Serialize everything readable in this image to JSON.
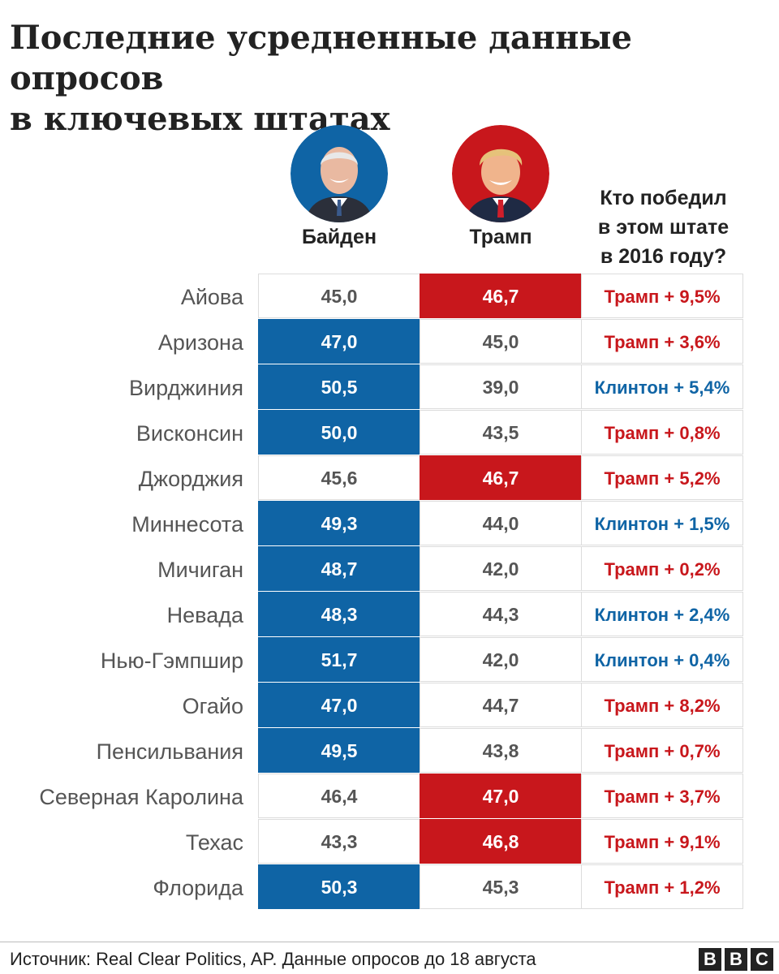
{
  "title_lines": [
    "Последние усредненные данные опросов",
    "в ключевых штатах"
  ],
  "columns": {
    "biden": "Байден",
    "trump": "Трамп",
    "winner_lines": [
      "Кто победил",
      "в этом штате",
      "в 2016 году?"
    ]
  },
  "colors": {
    "biden": "#0f64a5",
    "trump": "#c8171c"
  },
  "chart_data": {
    "type": "table",
    "columns": [
      "Байден",
      "Трамп",
      "Кто победил в этом штате в 2016 году?"
    ],
    "rows": [
      {
        "state": "Айова",
        "biden": "45,0",
        "trump": "46,7",
        "leader": "trump",
        "winner": "Трамп + 9,5%",
        "party": "rep"
      },
      {
        "state": "Аризона",
        "biden": "47,0",
        "trump": "45,0",
        "leader": "biden",
        "winner": "Трамп + 3,6%",
        "party": "rep"
      },
      {
        "state": "Вирджиния",
        "biden": "50,5",
        "trump": "39,0",
        "leader": "biden",
        "winner": "Клинтон + 5,4%",
        "party": "dem"
      },
      {
        "state": "Висконсин",
        "biden": "50,0",
        "trump": "43,5",
        "leader": "biden",
        "winner": "Трамп + 0,8%",
        "party": "rep"
      },
      {
        "state": "Джорджия",
        "biden": "45,6",
        "trump": "46,7",
        "leader": "trump",
        "winner": "Трамп + 5,2%",
        "party": "rep"
      },
      {
        "state": "Миннесота",
        "biden": "49,3",
        "trump": "44,0",
        "leader": "biden",
        "winner": "Клинтон + 1,5%",
        "party": "dem"
      },
      {
        "state": "Мичиган",
        "biden": "48,7",
        "trump": "42,0",
        "leader": "biden",
        "winner": "Трамп + 0,2%",
        "party": "rep"
      },
      {
        "state": "Невада",
        "biden": "48,3",
        "trump": "44,3",
        "leader": "biden",
        "winner": "Клинтон + 2,4%",
        "party": "dem"
      },
      {
        "state": "Нью-Гэмпшир",
        "biden": "51,7",
        "trump": "42,0",
        "leader": "biden",
        "winner": "Клинтон + 0,4%",
        "party": "dem"
      },
      {
        "state": "Огайо",
        "biden": "47,0",
        "trump": "44,7",
        "leader": "biden",
        "winner": "Трамп + 8,2%",
        "party": "rep"
      },
      {
        "state": "Пенсильвания",
        "biden": "49,5",
        "trump": "43,8",
        "leader": "biden",
        "winner": "Трамп + 0,7%",
        "party": "rep"
      },
      {
        "state": "Северная Каролина",
        "biden": "46,4",
        "trump": "47,0",
        "leader": "trump",
        "winner": "Трамп + 3,7%",
        "party": "rep"
      },
      {
        "state": "Техас",
        "biden": "43,3",
        "trump": "46,8",
        "leader": "trump",
        "winner": "Трамп + 9,1%",
        "party": "rep"
      },
      {
        "state": "Флорида",
        "biden": "50,3",
        "trump": "45,3",
        "leader": "biden",
        "winner": "Трамп + 1,2%",
        "party": "rep"
      }
    ]
  },
  "footer": {
    "source": "Источник: Real Clear Politics, AP. Данные опросов до 18 августа",
    "logo_letters": [
      "B",
      "B",
      "C"
    ]
  }
}
